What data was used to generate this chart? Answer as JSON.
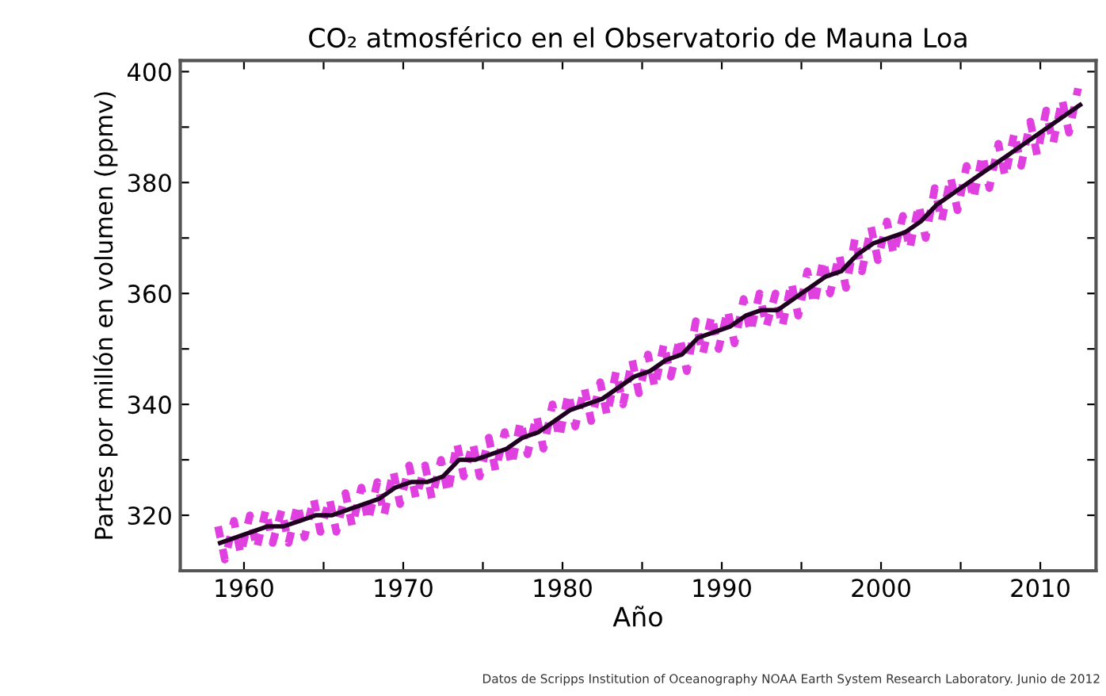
{
  "chart_data": {
    "type": "line",
    "title": "CO₂ atmosférico en el Observatorio de Mauna Loa",
    "xlabel": "Año",
    "ylabel": "Partes por millón en volumen (ppmv)",
    "annotations": [
      "Datos de Scripps Institution of Oceanography NOAA Earth System Research Laboratory. Junio de 2012"
    ],
    "xlim": [
      1956,
      2013.5
    ],
    "xticks": [
      1960,
      {
        "value": 1965,
        "label": null
      },
      1970,
      {
        "value": 1975,
        "label": null
      },
      1980,
      {
        "value": 1985,
        "label": null
      },
      1990,
      {
        "value": 1995,
        "label": null
      },
      2000,
      {
        "value": 2005,
        "label": null
      },
      2010
    ],
    "ylim": [
      310,
      402
    ],
    "yticks": [
      {
        "value": 310,
        "label": null
      },
      320,
      {
        "value": 330,
        "label": null
      },
      340,
      {
        "value": 350,
        "label": null
      },
      360,
      {
        "value": 370,
        "label": null
      },
      380,
      {
        "value": 390,
        "label": null
      },
      400
    ],
    "grid": false,
    "series": [
      {
        "color": "#e040e0",
        "line_style": "dashed",
        "x": [
          1958.37,
          1958.8,
          1959.37,
          1959.8,
          1960.37,
          1960.8,
          1961.37,
          1961.8,
          1962.37,
          1962.8,
          1963.37,
          1963.8,
          1964.37,
          1964.8,
          1965.37,
          1965.8,
          1966.37,
          1966.8,
          1967.37,
          1967.8,
          1968.37,
          1968.8,
          1969.37,
          1969.8,
          1970.37,
          1970.8,
          1971.37,
          1971.8,
          1972.37,
          1972.8,
          1973.37,
          1973.8,
          1974.37,
          1974.8,
          1975.37,
          1975.8,
          1976.37,
          1976.8,
          1977.37,
          1977.8,
          1978.37,
          1978.8,
          1979.37,
          1979.8,
          1980.37,
          1980.8,
          1981.37,
          1981.8,
          1982.37,
          1982.8,
          1983.37,
          1983.8,
          1984.37,
          1984.8,
          1985.37,
          1985.8,
          1986.37,
          1986.8,
          1987.37,
          1987.8,
          1988.37,
          1988.8,
          1989.37,
          1989.8,
          1990.37,
          1990.8,
          1991.37,
          1991.8,
          1992.37,
          1992.8,
          1993.37,
          1993.8,
          1994.37,
          1994.8,
          1995.37,
          1995.8,
          1996.37,
          1996.8,
          1997.37,
          1997.8,
          1998.37,
          1998.8,
          1999.37,
          1999.8,
          2000.37,
          2000.8,
          2001.37,
          2001.8,
          2002.37,
          2002.8,
          2003.37,
          2003.8,
          2004.37,
          2004.8,
          2005.37,
          2005.8,
          2006.37,
          2006.8,
          2007.37,
          2007.8,
          2008.37,
          2008.8,
          2009.37,
          2009.8,
          2010.37,
          2010.8,
          2011.37,
          2011.8,
          2012.37
        ],
        "values": [
          318,
          312,
          319,
          313,
          320,
          314,
          321,
          315,
          321,
          315,
          322,
          316,
          323,
          317,
          323,
          317,
          324,
          318,
          325,
          319,
          326,
          320,
          328,
          322,
          329,
          323,
          329,
          323,
          330,
          324,
          333,
          327,
          333,
          327,
          334,
          328,
          335,
          329,
          337,
          331,
          338,
          332,
          340,
          334,
          342,
          336,
          343,
          337,
          344,
          338,
          346,
          340,
          348,
          342,
          349,
          343,
          351,
          345,
          352,
          346,
          355,
          349,
          356,
          350,
          357,
          351,
          359,
          353,
          360,
          354,
          360,
          354,
          362,
          356,
          364,
          358,
          366,
          360,
          367,
          361,
          370,
          364,
          372,
          366,
          373,
          367,
          374,
          368,
          376,
          370,
          379,
          373,
          381,
          375,
          383,
          377,
          385,
          379,
          387,
          381,
          389,
          383,
          391,
          385,
          393,
          387,
          395,
          389,
          397
        ]
      },
      {
        "color": "#200020",
        "line_style": "solid",
        "x": [
          1958.5,
          1959.5,
          1960.5,
          1961.5,
          1962.5,
          1963.5,
          1964.5,
          1965.5,
          1966.5,
          1967.5,
          1968.5,
          1969.5,
          1970.5,
          1971.5,
          1972.5,
          1973.5,
          1974.5,
          1975.5,
          1976.5,
          1977.5,
          1978.5,
          1979.5,
          1980.5,
          1981.5,
          1982.5,
          1983.5,
          1984.5,
          1985.5,
          1986.5,
          1987.5,
          1988.5,
          1989.5,
          1990.5,
          1991.5,
          1992.5,
          1993.5,
          1994.5,
          1995.5,
          1996.5,
          1997.5,
          1998.5,
          1999.5,
          2000.5,
          2001.5,
          2002.5,
          2003.5,
          2004.5,
          2005.5,
          2006.5,
          2007.5,
          2008.5,
          2009.5,
          2010.5,
          2011.5,
          2012.5
        ],
        "values": [
          315,
          316,
          317,
          318,
          318,
          319,
          320,
          320,
          321,
          322,
          323,
          325,
          326,
          326,
          327,
          330,
          330,
          331,
          332,
          334,
          335,
          337,
          339,
          340,
          341,
          343,
          345,
          346,
          348,
          349,
          352,
          353,
          354,
          356,
          357,
          357,
          359,
          361,
          363,
          364,
          367,
          369,
          370,
          371,
          373,
          376,
          378,
          380,
          382,
          384,
          386,
          388,
          390,
          392,
          394
        ]
      }
    ]
  }
}
